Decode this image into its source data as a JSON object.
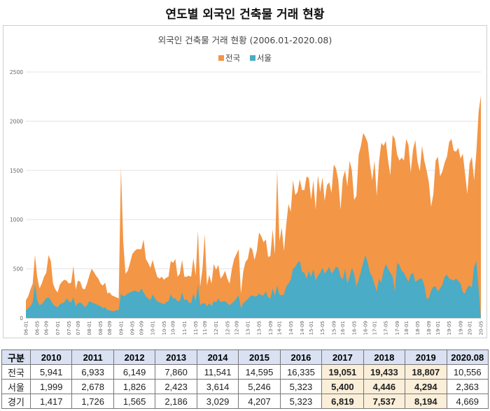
{
  "page_title": "연도별 외국인 건축물 거래 현황",
  "chart_data": {
    "type": "area",
    "title": "외국인 건축물 거래 현황 (2006.01-2020.08)",
    "ylim": [
      0,
      2500
    ],
    "yticks": [
      0,
      500,
      1000,
      1500,
      2000,
      2500
    ],
    "xtick_labels": [
      "06-01",
      "06-05",
      "06-09",
      "07-01",
      "07-05",
      "07-09",
      "08-01",
      "08-05",
      "08-09",
      "09-01",
      "09-05",
      "09-09",
      "10-01",
      "10-05",
      "10-09",
      "11-01",
      "11-05",
      "11-09",
      "12-01",
      "12-05",
      "12-09",
      "13-01",
      "13-05",
      "13-09",
      "14-01",
      "14-05",
      "14-09",
      "15-01",
      "15-05",
      "15-09",
      "16-01",
      "16-05",
      "16-09",
      "17-01",
      "17-05",
      "17-09",
      "18-01",
      "18-05",
      "18-09",
      "19-01",
      "19-05",
      "19-09",
      "20-01",
      "20-05"
    ],
    "grid": true,
    "legend_position": "top",
    "series": [
      {
        "name": "전국",
        "color": "#f39646",
        "values": [
          180,
          220,
          290,
          350,
          640,
          420,
          300,
          350,
          420,
          460,
          640,
          580,
          350,
          290,
          260,
          340,
          370,
          390,
          380,
          350,
          360,
          530,
          290,
          380,
          370,
          300,
          290,
          350,
          430,
          500,
          470,
          430,
          400,
          350,
          330,
          360,
          250,
          260,
          230,
          220,
          210,
          200,
          1530,
          780,
          450,
          480,
          560,
          650,
          680,
          700,
          700,
          700,
          800,
          600,
          560,
          510,
          590,
          500,
          420,
          400,
          420,
          390,
          410,
          420,
          580,
          560,
          600,
          420,
          450,
          590,
          420,
          420,
          430,
          420,
          610,
          430,
          890,
          320,
          500,
          850,
          330,
          440,
          350,
          550,
          490,
          540,
          400,
          430,
          480,
          400,
          350,
          500,
          600,
          650,
          700,
          250,
          470,
          570,
          600,
          720,
          700,
          590,
          680,
          870,
          830,
          770,
          800,
          620,
          630,
          900,
          650,
          1500,
          780,
          920,
          680,
          950,
          1160,
          1080,
          1400,
          1250,
          1280,
          1410,
          1300,
          1300,
          1440,
          1420,
          1200,
          1400,
          1100,
          1450,
          1280,
          1430,
          1190,
          1350,
          1380,
          1270,
          1560,
          1520,
          1400,
          1100,
          1420,
          1500,
          1340,
          1600,
          1500,
          1200,
          1240,
          1660,
          1750,
          1880,
          1840,
          1780,
          1560,
          1400,
          1600,
          1240,
          1590,
          1780,
          1750,
          1800,
          1600,
          1450,
          1860,
          1820,
          1660,
          1600,
          1630,
          1600,
          1820,
          1760,
          1480,
          1710,
          1810,
          1590,
          1490,
          1750,
          1600,
          1500,
          1380,
          1130,
          1260,
          1600,
          1640,
          1440,
          1490,
          1580,
          1640,
          1790,
          1820,
          1700,
          1690,
          1730,
          1620,
          1670,
          1470,
          1260,
          1570,
          1640,
          1400,
          1690,
          2100,
          2260
        ]
      },
      {
        "name": "서울",
        "color": "#4aacc6",
        "values": [
          80,
          100,
          120,
          160,
          350,
          180,
          130,
          140,
          170,
          200,
          210,
          180,
          140,
          120,
          110,
          140,
          150,
          160,
          200,
          170,
          160,
          210,
          120,
          150,
          160,
          140,
          110,
          130,
          170,
          160,
          150,
          140,
          130,
          120,
          100,
          110,
          80,
          80,
          70,
          70,
          80,
          80,
          250,
          220,
          230,
          250,
          260,
          270,
          280,
          270,
          260,
          300,
          260,
          220,
          200,
          180,
          240,
          200,
          170,
          160,
          150,
          140,
          160,
          170,
          240,
          200,
          200,
          170,
          170,
          260,
          180,
          190,
          160,
          150,
          250,
          170,
          340,
          130,
          150,
          150,
          120,
          150,
          120,
          170,
          160,
          200,
          160,
          170,
          170,
          150,
          130,
          150,
          170,
          200,
          230,
          100,
          150,
          170,
          190,
          220,
          230,
          220,
          220,
          250,
          230,
          230,
          270,
          210,
          200,
          300,
          230,
          330,
          240,
          230,
          240,
          320,
          350,
          390,
          500,
          520,
          560,
          580,
          470,
          460,
          400,
          480,
          420,
          500,
          380,
          430,
          460,
          510,
          450,
          480,
          520,
          450,
          480,
          520,
          510,
          420,
          390,
          500,
          350,
          420,
          510,
          450,
          320,
          390,
          470,
          560,
          640,
          560,
          460,
          420,
          340,
          270,
          400,
          360,
          480,
          550,
          500,
          460,
          420,
          270,
          560,
          540,
          480,
          460,
          410,
          370,
          440,
          460,
          370,
          380,
          400,
          400,
          330,
          200,
          200,
          280,
          320,
          320,
          270,
          300,
          340,
          420,
          440,
          400,
          390,
          380,
          400,
          380,
          350,
          260,
          250,
          310,
          330,
          310,
          520,
          580
        ]
      }
    ]
  },
  "table": {
    "headers": [
      "구분",
      "2010",
      "2011",
      "2012",
      "2013",
      "2014",
      "2015",
      "2016",
      "2017",
      "2018",
      "2019",
      "2020.08"
    ],
    "rows": [
      {
        "label": "전국",
        "values": [
          "5,941",
          "6,933",
          "6,149",
          "7,860",
          "11,541",
          "14,595",
          "16,335",
          "19,051",
          "19,433",
          "18,807",
          "10,556"
        ]
      },
      {
        "label": "서울",
        "values": [
          "1,999",
          "2,678",
          "1,826",
          "2,423",
          "3,614",
          "5,246",
          "5,323",
          "5,400",
          "4,446",
          "4,294",
          "2,363"
        ]
      },
      {
        "label": "경기",
        "values": [
          "1,417",
          "1,726",
          "1,565",
          "2,186",
          "3,029",
          "4,207",
          "5,323",
          "6,819",
          "7,537",
          "8,194",
          "4,669"
        ]
      }
    ]
  }
}
